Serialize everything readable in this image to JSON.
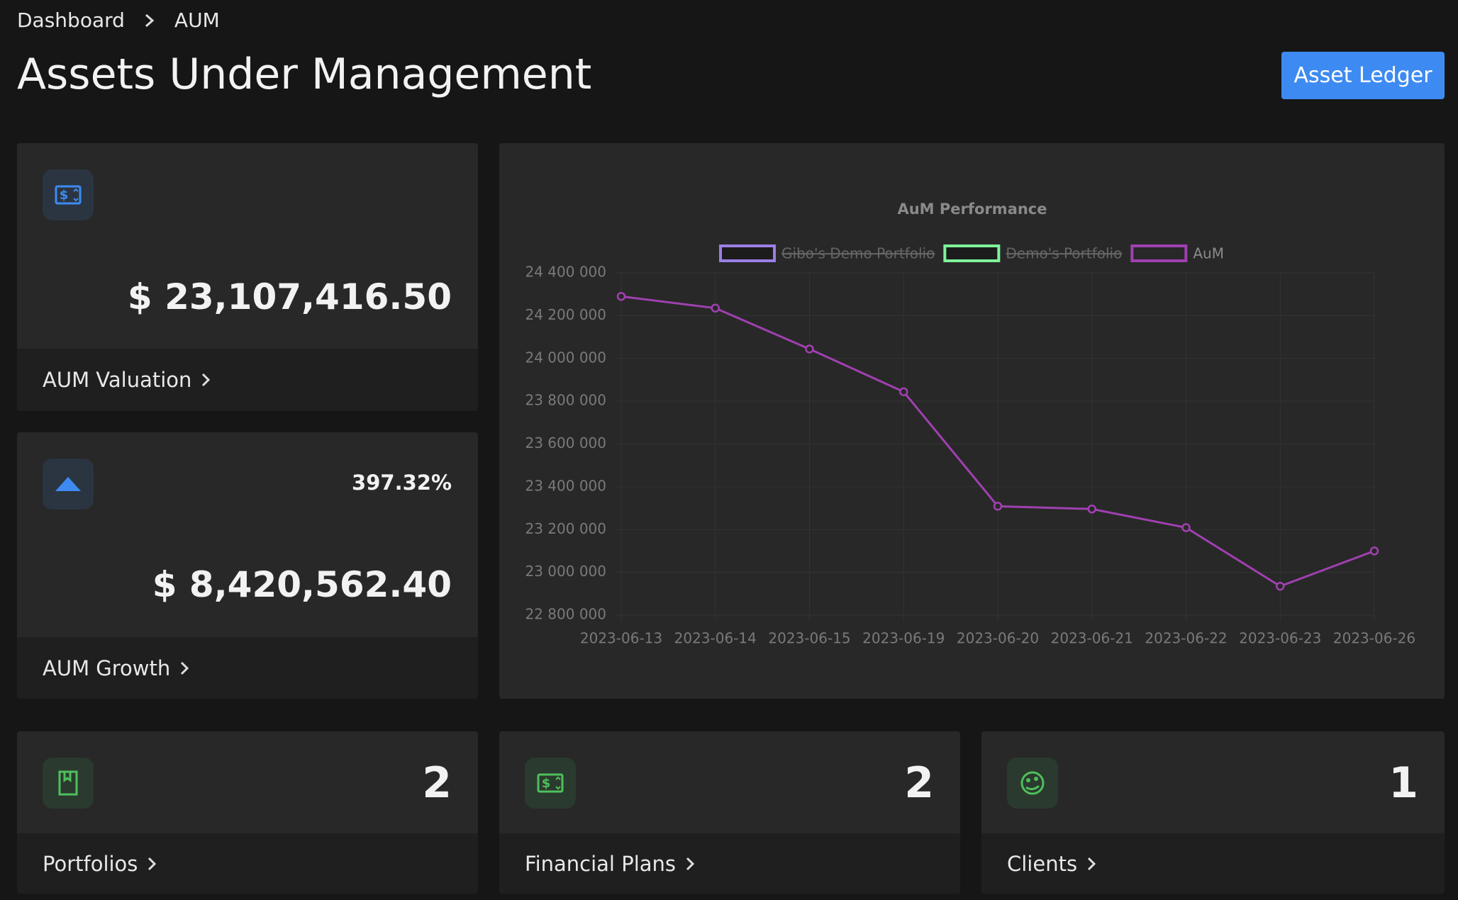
{
  "breadcrumb": [
    "Dashboard",
    "AUM"
  ],
  "header": {
    "title": "Assets Under Management",
    "button": "Asset Ledger"
  },
  "cards": [
    {
      "value": "$ 23,107,416.50",
      "label": "AUM Valuation"
    },
    {
      "value": "$ 8,420,562.40",
      "label": "AUM Growth",
      "change": "397.32%"
    },
    {
      "value": 2,
      "label": "Portfolios"
    },
    {
      "value": 2,
      "label": "Financial Plans"
    },
    {
      "value": 1,
      "label": "Clients"
    }
  ],
  "chart_data": {
    "type": "line",
    "title": "AuM Performance",
    "categories": [
      "2023-06-13",
      "2023-06-14",
      "2023-06-15",
      "2023-06-19",
      "2023-06-20",
      "2023-06-21",
      "2023-06-22",
      "2023-06-23",
      "2023-06-26"
    ],
    "series": [
      {
        "name": "Gibo's Demo Portfolio",
        "color": "#9b7fe6",
        "hidden": true,
        "values": [
          null,
          null,
          null,
          null,
          null,
          null,
          null,
          null,
          null
        ]
      },
      {
        "name": "Demo's Portfolio",
        "color": "#7ff29b",
        "hidden": true,
        "values": [
          null,
          null,
          null,
          null,
          null,
          null,
          null,
          null,
          null
        ]
      },
      {
        "name": "AuM",
        "color": "#a040b0",
        "hidden": false,
        "values": [
          24290000,
          24235000,
          24044000,
          23844000,
          23309000,
          23296000,
          23209000,
          22935000,
          23100000
        ]
      }
    ],
    "ylim": [
      22800000,
      24400000
    ],
    "yticks": [
      {
        "value": 22800000,
        "label": "22 800 000"
      },
      {
        "value": 23000000,
        "label": "23 000 000"
      },
      {
        "value": 23200000,
        "label": "23 200 000"
      },
      {
        "value": 23400000,
        "label": "23 400 000"
      },
      {
        "value": 23600000,
        "label": "23 600 000"
      },
      {
        "value": 23800000,
        "label": "23 800 000"
      },
      {
        "value": 24000000,
        "label": "24 000 000"
      },
      {
        "value": 24200000,
        "label": "24 200 000"
      },
      {
        "value": 24400000,
        "label": "24 400 000"
      }
    ],
    "grid": true,
    "legend": "top"
  }
}
